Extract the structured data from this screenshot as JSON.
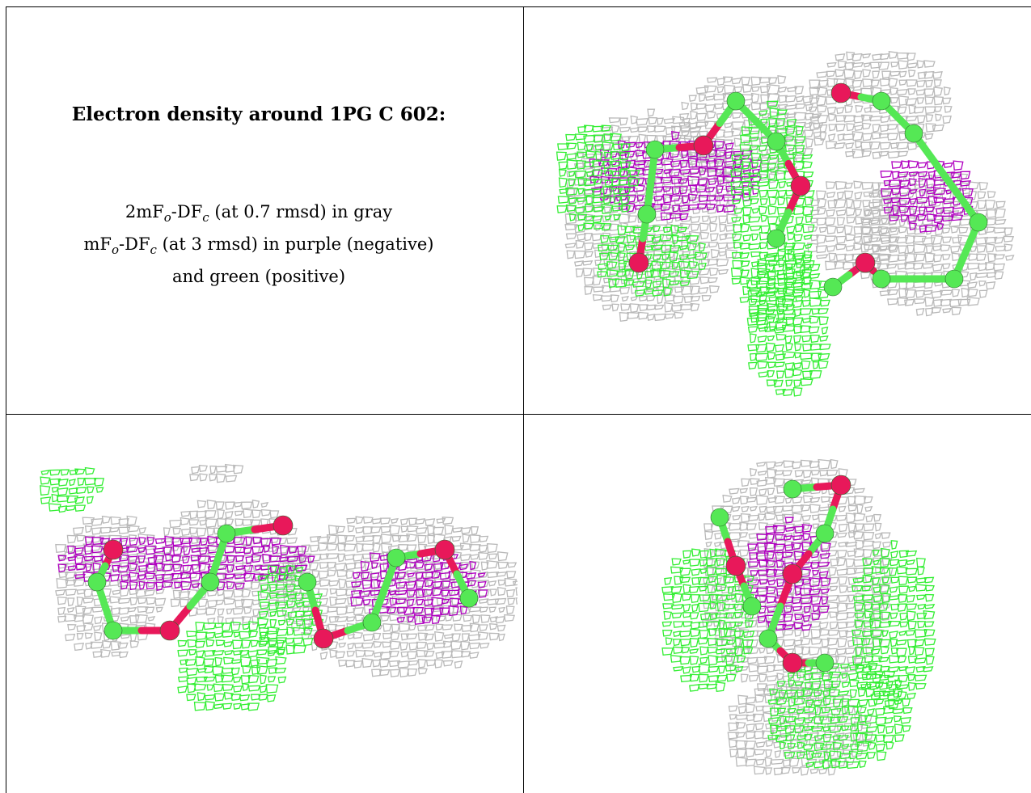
{
  "title": "Electron density around 1PG C 602:",
  "legend": {
    "line1_a": "2mF",
    "line1_sub1": "o",
    "line1_b": "-DF",
    "line1_sub2": "c",
    "line1_c": " (at 0.7 rmsd) in gray",
    "line2_a": "mF",
    "line2_sub1": "o",
    "line2_b": "-DF",
    "line2_sub2": "c",
    "line2_c": " (at 3 rmsd) in purple (negative)",
    "line3": "and green (positive)"
  },
  "colors": {
    "gray_mesh": "#b9b9b9",
    "negative_mesh": "#b000c0",
    "positive_mesh": "#33ee33",
    "carbon_atom": "#55e855",
    "oxygen_atom": "#e8185a",
    "border": "#000000"
  },
  "panels": [
    {
      "name": "view-top-right"
    },
    {
      "name": "view-bottom-left"
    },
    {
      "name": "view-bottom-right"
    }
  ]
}
